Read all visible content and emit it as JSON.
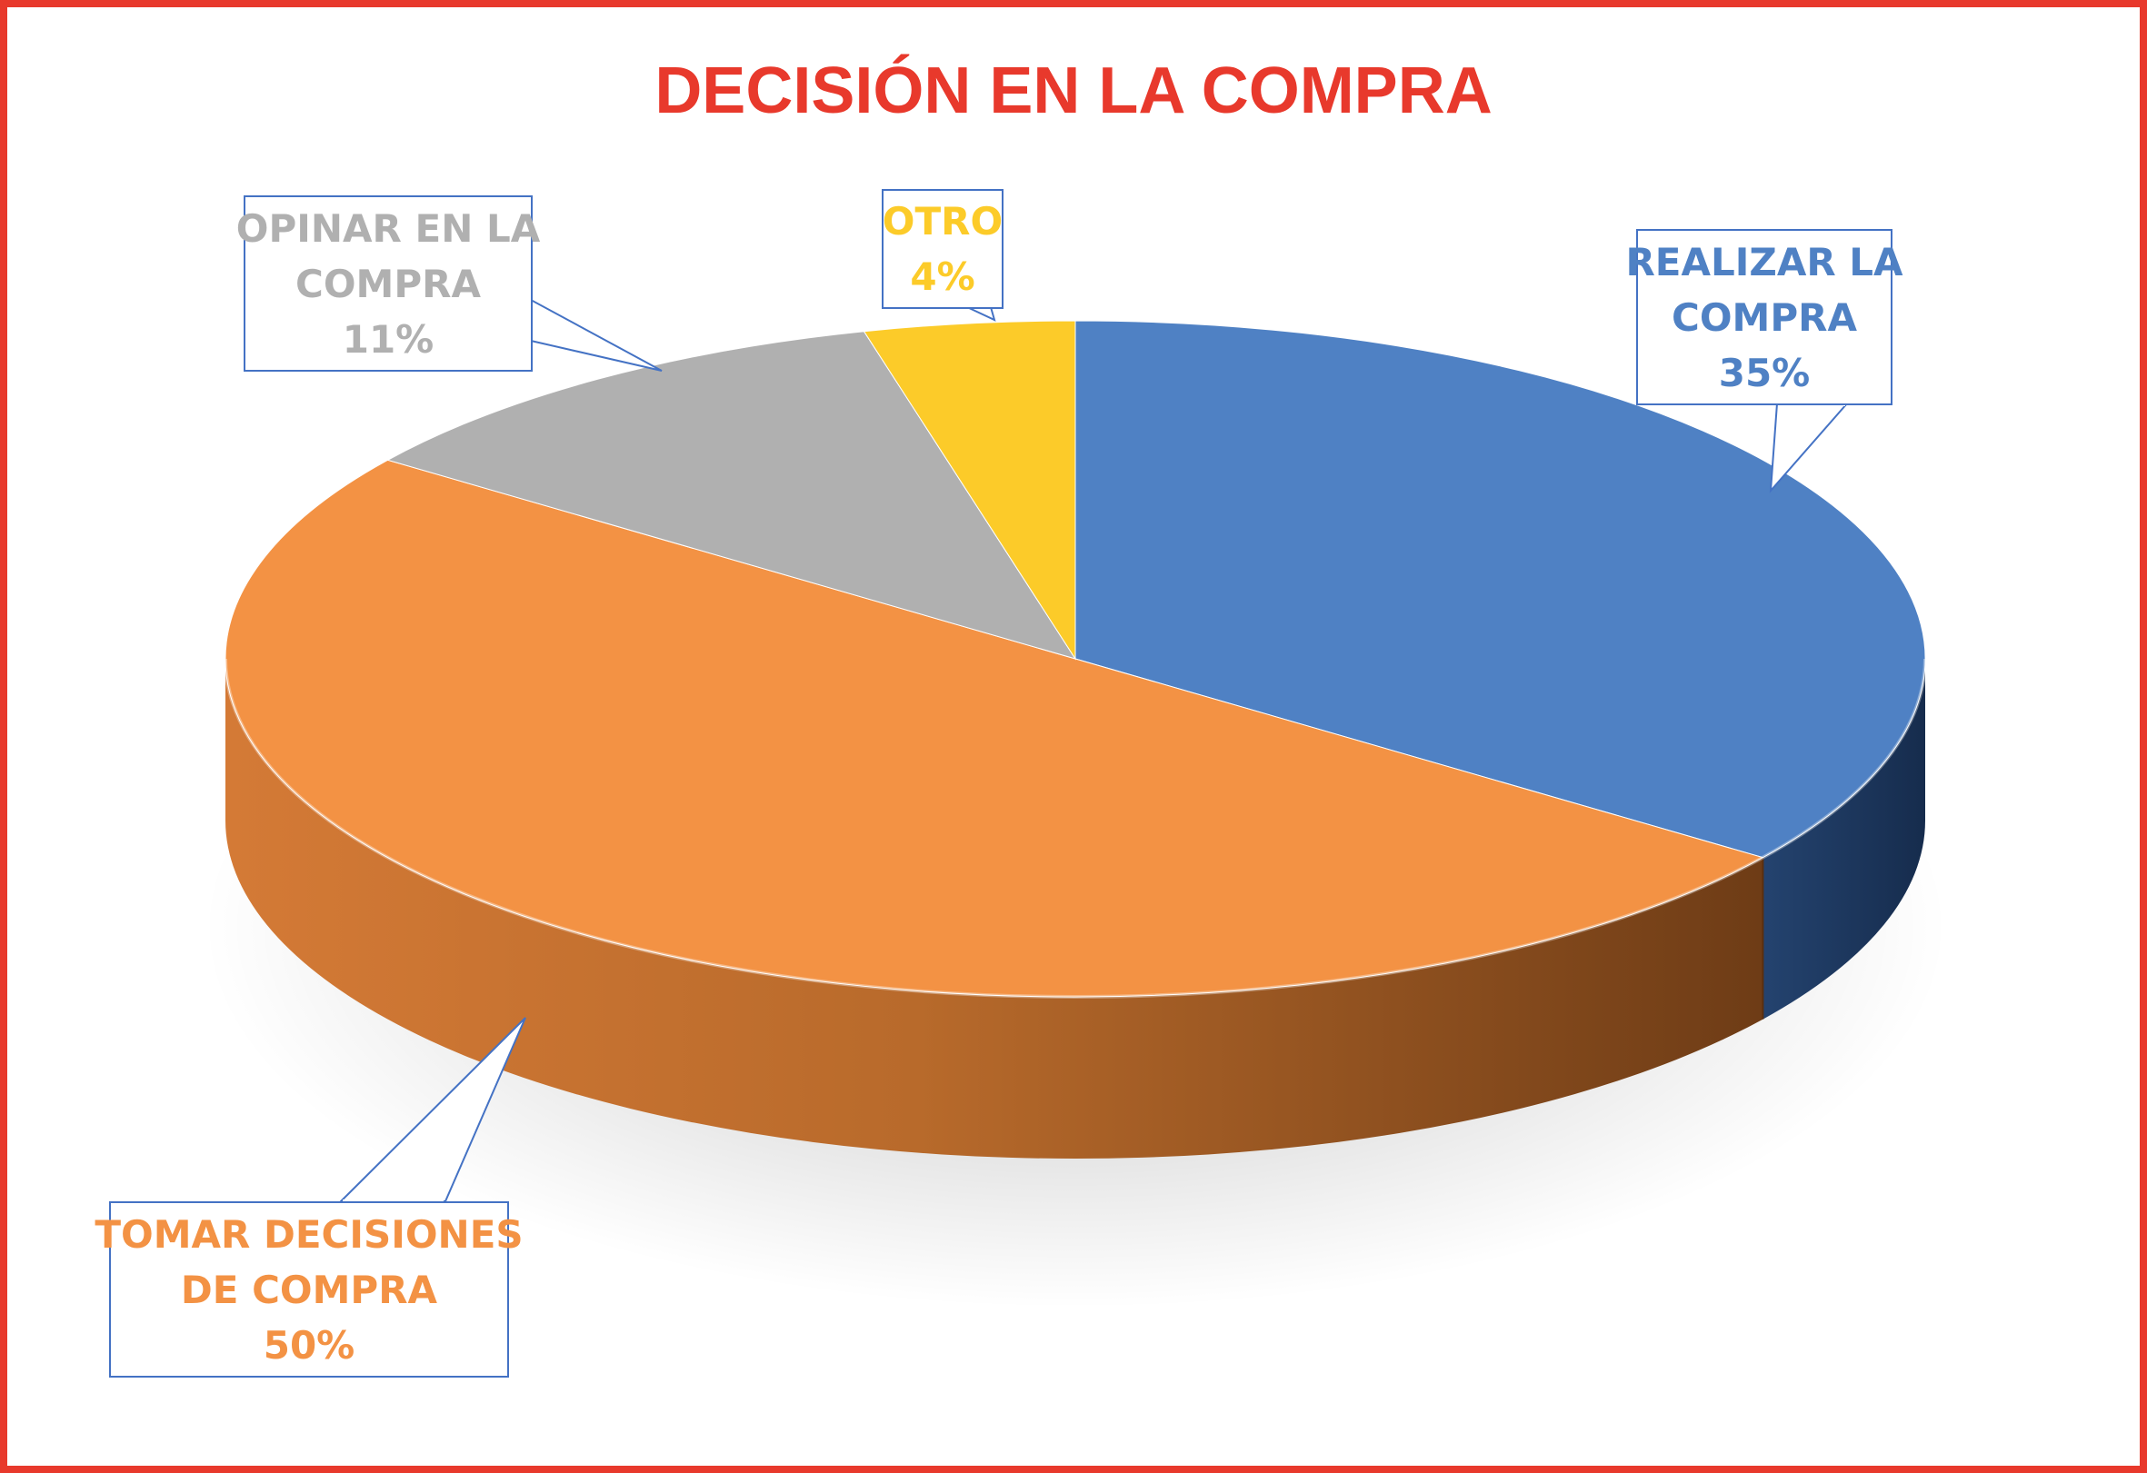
{
  "frame": {
    "border_color": "#e8392c"
  },
  "chart_data": {
    "type": "pie",
    "title": "DECISIÓN EN LA COMPRA",
    "title_color": "#e8392c",
    "style": "3d",
    "legend": "none",
    "slices": [
      {
        "label_lines": [
          "REALIZAR LA",
          "COMPRA"
        ],
        "value": 35,
        "value_label": "35%",
        "color": "#4f81c4"
      },
      {
        "label_lines": [
          "TOMAR DECISIONES",
          "DE COMPRA"
        ],
        "value": 50,
        "value_label": "50%",
        "color": "#f39244"
      },
      {
        "label_lines": [
          "OPINAR EN LA",
          "COMPRA"
        ],
        "value": 11,
        "value_label": "11%",
        "color": "#b0b0b0"
      },
      {
        "label_lines": [
          "OTRO"
        ],
        "value": 4,
        "value_label": "4%",
        "color": "#fccb29"
      }
    ]
  }
}
